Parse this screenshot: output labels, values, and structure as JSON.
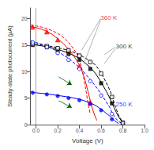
{
  "chart_data": {
    "type": "line",
    "xlabel": "Voltage (V)",
    "ylabel": "Steady-state photocurrent (μA)",
    "xlim": [
      -0.05,
      1.0
    ],
    "ylim": [
      0,
      22
    ],
    "xticks": [
      {
        "value": 0.0,
        "label": "0.0"
      },
      0.2,
      0.4,
      0.6,
      0.8,
      {
        "value": 1.0,
        "label": "1.0"
      }
    ],
    "yticks": [
      0,
      5,
      10,
      15,
      20
    ],
    "grid": false,
    "series": [
      {
        "type": "line",
        "color": "red",
        "line_style": "solid",
        "x": [
          -0.05,
          0.0,
          0.05,
          0.1,
          0.15,
          0.2,
          0.25,
          0.3,
          0.35,
          0.4,
          0.42,
          0.44,
          0.46,
          0.48,
          0.5,
          0.52,
          0.54,
          0.56
        ],
        "values": [
          18.5,
          18.3,
          18.0,
          17.6,
          17.0,
          16.2,
          15.3,
          14.2,
          12.9,
          11.2,
          10.3,
          9.2,
          7.8,
          6.2,
          4.5,
          3.0,
          1.8,
          0.8
        ]
      },
      {
        "type": "line",
        "color": "red",
        "line_style": "dashed",
        "x": [
          -0.05,
          0.0,
          0.05,
          0.1,
          0.15,
          0.2,
          0.25,
          0.3,
          0.35,
          0.38,
          0.4,
          0.42,
          0.44,
          0.46,
          0.48,
          0.5
        ],
        "values": [
          18.8,
          18.6,
          18.4,
          18.1,
          17.7,
          17.2,
          16.5,
          15.5,
          14.2,
          13.2,
          12.2,
          10.8,
          8.8,
          6.5,
          4.0,
          2.0
        ]
      },
      {
        "type": "scatter",
        "color": "red",
        "marker": "triangle",
        "x": [
          -0.03,
          0.1,
          0.2,
          0.3,
          0.4,
          0.5
        ],
        "values": [
          18.4,
          17.5,
          16.0,
          14.0,
          11.0,
          4.2
        ]
      },
      {
        "type": "line",
        "color": "black",
        "line_style": "solid",
        "x": [
          -0.05,
          0.0,
          0.1,
          0.2,
          0.3,
          0.4,
          0.5,
          0.55,
          0.6,
          0.65,
          0.68,
          0.7,
          0.72,
          0.74,
          0.76,
          0.78,
          0.8
        ],
        "values": [
          15.2,
          15.0,
          14.7,
          14.2,
          13.5,
          12.5,
          10.8,
          9.6,
          8.0,
          6.2,
          5.0,
          4.0,
          3.2,
          2.3,
          1.5,
          0.9,
          0.4
        ]
      },
      {
        "type": "line",
        "color": "black",
        "line_style": "dashed",
        "x": [
          -0.05,
          0.0,
          0.1,
          0.2,
          0.3,
          0.4,
          0.5,
          0.55,
          0.6,
          0.65,
          0.68,
          0.7,
          0.73,
          0.76,
          0.79,
          0.82
        ],
        "values": [
          15.4,
          15.2,
          14.9,
          14.5,
          14.0,
          13.2,
          12.0,
          11.2,
          9.8,
          7.8,
          6.5,
          5.4,
          3.5,
          1.8,
          0.7,
          0.2
        ]
      },
      {
        "type": "scatter",
        "color": "black",
        "marker": "square",
        "x": [
          -0.03,
          0.1,
          0.2,
          0.3,
          0.4,
          0.5,
          0.6,
          0.7,
          0.8
        ],
        "values": [
          15.0,
          14.6,
          14.0,
          13.3,
          12.2,
          10.5,
          7.8,
          4.0,
          0.4
        ]
      },
      {
        "type": "scatter",
        "color": "black",
        "marker": "open_square",
        "x": [
          -0.03,
          0.1,
          0.2,
          0.3,
          0.4,
          0.5,
          0.6,
          0.7,
          0.8
        ],
        "values": [
          15.2,
          14.8,
          14.4,
          14.0,
          13.0,
          11.8,
          9.6,
          5.2,
          0.3
        ]
      },
      {
        "type": "line",
        "color": "blue",
        "line_style": "solid",
        "x": [
          -0.05,
          0.0,
          0.1,
          0.2,
          0.3,
          0.4,
          0.5,
          0.55,
          0.6,
          0.65,
          0.68,
          0.7,
          0.72,
          0.74,
          0.76
        ],
        "values": [
          6.2,
          6.0,
          5.8,
          5.5,
          5.2,
          4.8,
          4.1,
          3.6,
          2.9,
          2.1,
          1.6,
          1.2,
          0.8,
          0.5,
          0.2
        ]
      },
      {
        "type": "line",
        "color": "blue",
        "line_style": "dashed",
        "x": [
          -0.05,
          0.0,
          0.1,
          0.2,
          0.3,
          0.4,
          0.5,
          0.55,
          0.6,
          0.65,
          0.68,
          0.7,
          0.73,
          0.76,
          0.79
        ],
        "values": [
          15.8,
          15.5,
          14.8,
          13.8,
          12.5,
          10.8,
          8.5,
          7.2,
          5.8,
          4.2,
          3.2,
          2.3,
          1.3,
          0.6,
          0.2
        ]
      },
      {
        "type": "scatter",
        "color": "blue",
        "marker": "circle",
        "x": [
          -0.03,
          0.1,
          0.2,
          0.3,
          0.4,
          0.5,
          0.6,
          0.7
        ],
        "values": [
          6.0,
          5.7,
          5.4,
          5.0,
          4.6,
          3.9,
          2.7,
          1.0
        ]
      },
      {
        "type": "scatter",
        "color": "blue",
        "marker": "open_circle",
        "x": [
          -0.03,
          0.1,
          0.2,
          0.3,
          0.4,
          0.5,
          0.6,
          0.7
        ],
        "values": [
          15.5,
          14.6,
          13.5,
          12.2,
          10.5,
          8.2,
          5.5,
          2.0
        ]
      }
    ],
    "annotations": [
      {
        "text": "360 K",
        "x": 0.595,
        "y": 20.2,
        "color": "red"
      },
      {
        "text": "300 K",
        "x": 0.735,
        "y": 14.8,
        "color": "black"
      },
      {
        "text": "250 K",
        "x": 0.735,
        "y": 3.8,
        "color": "blue"
      }
    ],
    "vlines": [
      {
        "x": 0.0,
        "color": "gray"
      }
    ],
    "pointer_lines": [
      {
        "x1": 0.595,
        "y1": 20.0,
        "x2": 0.42,
        "y2": 14.0,
        "color": "gray"
      },
      {
        "x1": 0.595,
        "y1": 19.7,
        "x2": 0.44,
        "y2": 11.5,
        "color": "gray"
      },
      {
        "x1": 0.73,
        "y1": 14.6,
        "x2": 0.63,
        "y2": 13.2,
        "color": "gray"
      },
      {
        "x1": 0.73,
        "y1": 14.3,
        "x2": 0.63,
        "y2": 11.5,
        "color": "gray"
      }
    ],
    "arrows": [
      {
        "tail": [
          0.21,
          9.0
        ],
        "head": [
          0.33,
          7.5
        ],
        "color": "darkgreen"
      },
      {
        "tail": [
          0.21,
          4.5
        ],
        "head": [
          0.33,
          3.2
        ],
        "color": "darkgreen"
      }
    ]
  }
}
